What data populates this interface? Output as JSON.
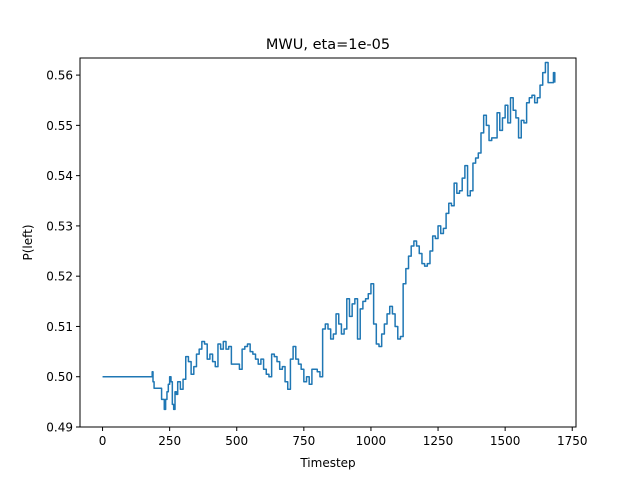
{
  "chart_data": {
    "type": "line",
    "title": "MWU, eta=1e-05",
    "xlabel": "Timestep",
    "ylabel": "P(left)",
    "xlim": [
      -84,
      1764
    ],
    "ylim": [
      0.49,
      0.5634
    ],
    "xticks": [
      0,
      250,
      500,
      750,
      1000,
      1250,
      1500,
      1750
    ],
    "xtick_labels": [
      "0",
      "250",
      "500",
      "750",
      "1000",
      "1250",
      "1500",
      "1750"
    ],
    "yticks": [
      0.49,
      0.5,
      0.51,
      0.52,
      0.53,
      0.54,
      0.55,
      0.56
    ],
    "ytick_labels": [
      "0.49",
      "0.50",
      "0.51",
      "0.52",
      "0.53",
      "0.54",
      "0.55",
      "0.56"
    ],
    "grid": false,
    "legend": "none",
    "series": [
      {
        "color": "#1f77b4",
        "x": [
          0,
          50,
          100,
          150,
          180,
          185,
          188,
          192,
          200,
          210,
          220,
          230,
          235,
          240,
          245,
          250,
          255,
          260,
          265,
          270,
          275,
          280,
          290,
          300,
          310,
          320,
          330,
          340,
          350,
          360,
          370,
          380,
          390,
          400,
          410,
          420,
          430,
          440,
          450,
          460,
          470,
          480,
          490,
          500,
          510,
          520,
          530,
          540,
          550,
          560,
          570,
          580,
          590,
          600,
          610,
          620,
          630,
          640,
          650,
          660,
          670,
          680,
          690,
          700,
          710,
          720,
          730,
          740,
          750,
          760,
          770,
          780,
          790,
          800,
          810,
          820,
          830,
          840,
          850,
          860,
          870,
          880,
          890,
          900,
          910,
          920,
          930,
          940,
          950,
          960,
          970,
          980,
          990,
          1000,
          1010,
          1020,
          1030,
          1040,
          1050,
          1060,
          1070,
          1080,
          1090,
          1100,
          1110,
          1120,
          1130,
          1140,
          1150,
          1160,
          1170,
          1180,
          1190,
          1200,
          1210,
          1220,
          1230,
          1240,
          1250,
          1260,
          1270,
          1280,
          1290,
          1300,
          1310,
          1320,
          1330,
          1340,
          1350,
          1360,
          1370,
          1380,
          1390,
          1400,
          1410,
          1420,
          1430,
          1440,
          1450,
          1460,
          1470,
          1480,
          1490,
          1500,
          1510,
          1520,
          1530,
          1540,
          1550,
          1560,
          1570,
          1580,
          1590,
          1600,
          1610,
          1620,
          1630,
          1640,
          1650,
          1660,
          1670,
          1680,
          1685
        ],
        "y": [
          0.5,
          0.5,
          0.5,
          0.5,
          0.5,
          0.501,
          0.499,
          0.4977,
          0.4977,
          0.4977,
          0.4955,
          0.4935,
          0.4955,
          0.497,
          0.4985,
          0.5,
          0.499,
          0.4945,
          0.4935,
          0.497,
          0.4965,
          0.499,
          0.4975,
          0.4995,
          0.504,
          0.503,
          0.5005,
          0.502,
          0.5045,
          0.5055,
          0.507,
          0.5065,
          0.5035,
          0.5045,
          0.503,
          0.502,
          0.5065,
          0.5055,
          0.507,
          0.5055,
          0.506,
          0.5025,
          0.5025,
          0.5025,
          0.5015,
          0.5055,
          0.506,
          0.5065,
          0.505,
          0.5045,
          0.5035,
          0.5025,
          0.5035,
          0.5015,
          0.5005,
          0.5,
          0.5045,
          0.504,
          0.503,
          0.5015,
          0.502,
          0.499,
          0.4975,
          0.5035,
          0.506,
          0.5035,
          0.5025,
          0.5015,
          0.499,
          0.5,
          0.4985,
          0.5015,
          0.5015,
          0.501,
          0.5,
          0.5095,
          0.5105,
          0.5095,
          0.5075,
          0.5085,
          0.5125,
          0.5105,
          0.5085,
          0.5095,
          0.5155,
          0.512,
          0.5145,
          0.5155,
          0.5075,
          0.5135,
          0.515,
          0.5155,
          0.5165,
          0.5185,
          0.5105,
          0.5065,
          0.506,
          0.5085,
          0.5105,
          0.5125,
          0.514,
          0.5125,
          0.51,
          0.5075,
          0.508,
          0.5185,
          0.5215,
          0.524,
          0.526,
          0.527,
          0.526,
          0.5245,
          0.5225,
          0.522,
          0.5225,
          0.525,
          0.528,
          0.5275,
          0.53,
          0.5285,
          0.5295,
          0.5325,
          0.5345,
          0.534,
          0.5385,
          0.5365,
          0.537,
          0.5395,
          0.542,
          0.536,
          0.537,
          0.5425,
          0.5435,
          0.5445,
          0.5485,
          0.552,
          0.55,
          0.547,
          0.5475,
          0.5475,
          0.5525,
          0.549,
          0.5515,
          0.554,
          0.5505,
          0.5555,
          0.553,
          0.5515,
          0.5475,
          0.551,
          0.5505,
          0.5545,
          0.5555,
          0.556,
          0.5545,
          0.5555,
          0.558,
          0.5605,
          0.5625,
          0.5585,
          0.5585,
          0.5605,
          0.5585
        ]
      }
    ]
  }
}
